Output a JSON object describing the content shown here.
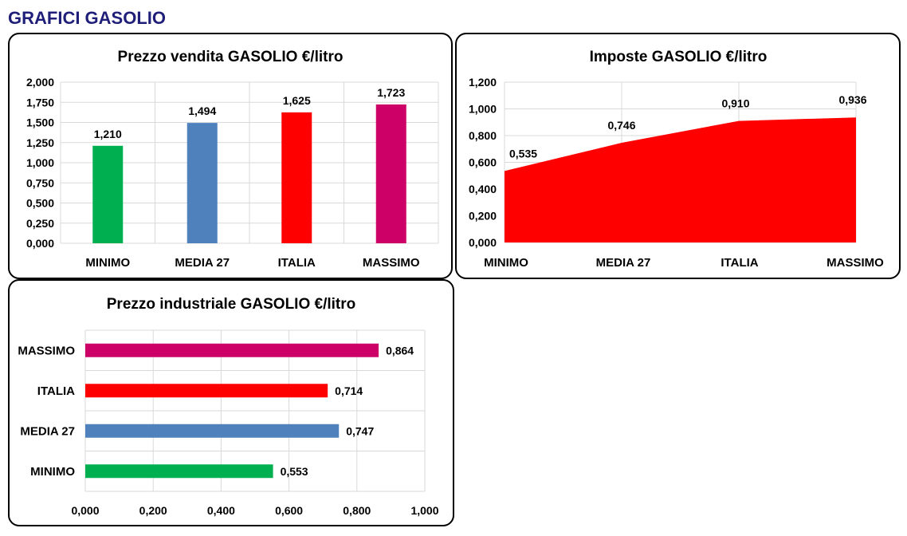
{
  "page": {
    "title": "GRAFICI GASOLIO"
  },
  "chart_data": [
    {
      "type": "bar",
      "title": "Prezzo vendita GASOLIO €/litro",
      "categories": [
        "MINIMO",
        "MEDIA 27",
        "ITALIA",
        "MASSIMO"
      ],
      "values": [
        1.21,
        1.494,
        1.625,
        1.723
      ],
      "value_labels": [
        "1,210",
        "1,494",
        "1,625",
        "1,723"
      ],
      "colors": [
        "#00b050",
        "#4f81bd",
        "#ff0000",
        "#cc0066"
      ],
      "ylim": [
        0,
        2
      ],
      "yticks": [
        0,
        0.25,
        0.5,
        0.75,
        1,
        1.25,
        1.5,
        1.75,
        2
      ],
      "ytick_labels": [
        "0,000",
        "0,250",
        "0,500",
        "0,750",
        "1,000",
        "1,250",
        "1,500",
        "1,750",
        "2,000"
      ],
      "grid": true
    },
    {
      "type": "area",
      "title": "Imposte GASOLIO €/litro",
      "categories": [
        "MINIMO",
        "MEDIA 27",
        "ITALIA",
        "MASSIMO"
      ],
      "values": [
        0.535,
        0.746,
        0.91,
        0.936
      ],
      "value_labels": [
        "0,535",
        "0,746",
        "0,910",
        "0,936"
      ],
      "color": "#ff0000",
      "ylim": [
        0,
        1.2
      ],
      "yticks": [
        0,
        0.2,
        0.4,
        0.6,
        0.8,
        1.0,
        1.2
      ],
      "ytick_labels": [
        "0,000",
        "0,200",
        "0,400",
        "0,600",
        "0,800",
        "1,000",
        "1,200"
      ],
      "grid": true
    },
    {
      "type": "bar",
      "orientation": "horizontal",
      "title": "Prezzo industriale GASOLIO €/litro",
      "categories": [
        "MINIMO",
        "MEDIA 27",
        "ITALIA",
        "MASSIMO"
      ],
      "values": [
        0.553,
        0.747,
        0.714,
        0.864
      ],
      "value_labels": [
        "0,553",
        "0,747",
        "0,714",
        "0,864"
      ],
      "colors": [
        "#00b050",
        "#4f81bd",
        "#ff0000",
        "#cc0066"
      ],
      "xlim": [
        0,
        1
      ],
      "xticks": [
        0,
        0.2,
        0.4,
        0.6,
        0.8,
        1.0
      ],
      "xtick_labels": [
        "0,000",
        "0,200",
        "0,400",
        "0,600",
        "0,800",
        "1,000"
      ],
      "grid": true
    }
  ]
}
